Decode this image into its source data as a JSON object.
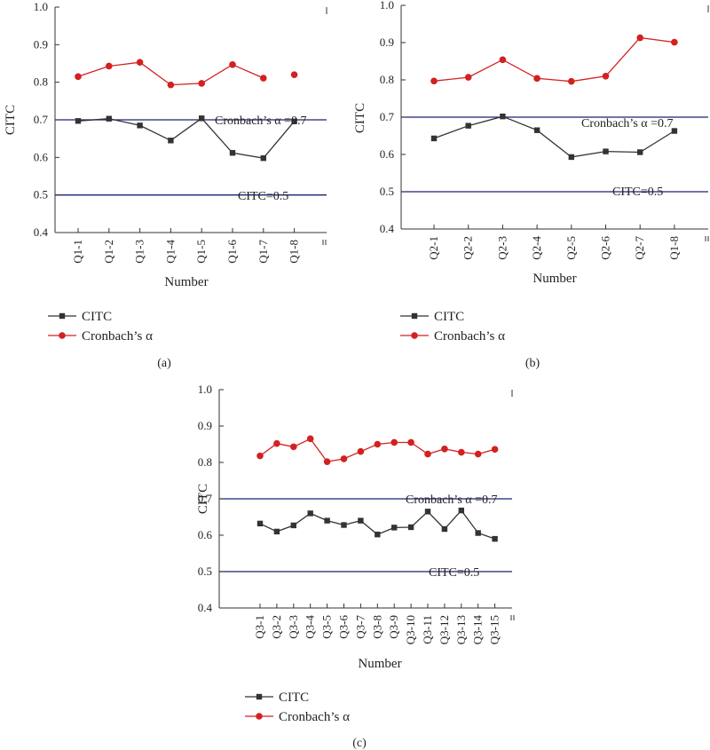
{
  "colors": {
    "citc": "#333333",
    "alpha": "#d42020",
    "refline": "#1c2270",
    "axis": "#333333"
  },
  "chart_data": [
    {
      "type": "line",
      "panel_label": "(a)",
      "xlabel": "Number",
      "ylabel": "CITC",
      "ylim": [
        0.4,
        1.0
      ],
      "yticks": [
        "0.4",
        "0.5",
        "0.6",
        "0.7",
        "0.8",
        "0.9",
        "1.0"
      ],
      "categories": [
        "Q1-1",
        "Q1-2",
        "Q1-3",
        "Q1-4",
        "Q1-5",
        "Q1-6",
        "Q1-7",
        "Q1-8"
      ],
      "series": [
        {
          "name": "CITC",
          "values": [
            0.697,
            0.703,
            0.685,
            0.645,
            0.704,
            0.612,
            0.598,
            0.696
          ]
        },
        {
          "name": "Cronbach’s α",
          "values": [
            0.815,
            0.843,
            0.853,
            0.793,
            0.797,
            0.847,
            0.811,
            0.82
          ],
          "break_after_index": 6
        }
      ],
      "reference_lines": [
        {
          "value": 0.7,
          "label": "Cronbach’s α =0.7"
        },
        {
          "value": 0.5,
          "label": "CITC=0.5"
        }
      ]
    },
    {
      "type": "line",
      "panel_label": "(b)",
      "xlabel": "Number",
      "ylabel": "CITC",
      "ylim": [
        0.4,
        1.0
      ],
      "yticks": [
        "0.4",
        "0.5",
        "0.6",
        "0.7",
        "0.8",
        "0.9",
        "1.0"
      ],
      "categories": [
        "Q2-1",
        "Q2-2",
        "Q2-3",
        "Q2-4",
        "Q2-5",
        "Q2-6",
        "Q2-7",
        "Q1-8"
      ],
      "series": [
        {
          "name": "CITC",
          "values": [
            0.643,
            0.677,
            0.702,
            0.665,
            0.593,
            0.608,
            0.606,
            0.663
          ]
        },
        {
          "name": "Cronbach’s α",
          "values": [
            0.797,
            0.807,
            0.854,
            0.804,
            0.796,
            0.81,
            0.913,
            0.901
          ]
        }
      ],
      "reference_lines": [
        {
          "value": 0.7,
          "label": "Cronbach’s α =0.7"
        },
        {
          "value": 0.5,
          "label": "CITC=0.5"
        }
      ]
    },
    {
      "type": "line",
      "panel_label": "(c)",
      "xlabel": "Number",
      "ylabel": "CITC",
      "ylim": [
        0.4,
        1.0
      ],
      "yticks": [
        "0.4",
        "0.5",
        "0.6",
        "0.7",
        "0.8",
        "0.9",
        "1.0"
      ],
      "categories": [
        "Q3-1",
        "Q3-2",
        "Q3-3",
        "Q3-4",
        "Q3-5",
        "Q3-6",
        "Q3-7",
        "Q3-8",
        "Q3-9",
        "Q3-10",
        "Q3-11",
        "Q3-12",
        "Q3-13",
        "Q3-14",
        "Q3-15"
      ],
      "series": [
        {
          "name": "CITC",
          "values": [
            0.632,
            0.61,
            0.627,
            0.66,
            0.64,
            0.628,
            0.64,
            0.602,
            0.621,
            0.622,
            0.665,
            0.617,
            0.668,
            0.606,
            0.59
          ]
        },
        {
          "name": "Cronbach’s α",
          "values": [
            0.818,
            0.852,
            0.843,
            0.865,
            0.802,
            0.81,
            0.83,
            0.85,
            0.855,
            0.855,
            0.823,
            0.837,
            0.828,
            0.823,
            0.836
          ]
        }
      ],
      "reference_lines": [
        {
          "value": 0.7,
          "label": "Cronbach’s α =0.7"
        },
        {
          "value": 0.5,
          "label": "CITC=0.5"
        }
      ]
    }
  ]
}
